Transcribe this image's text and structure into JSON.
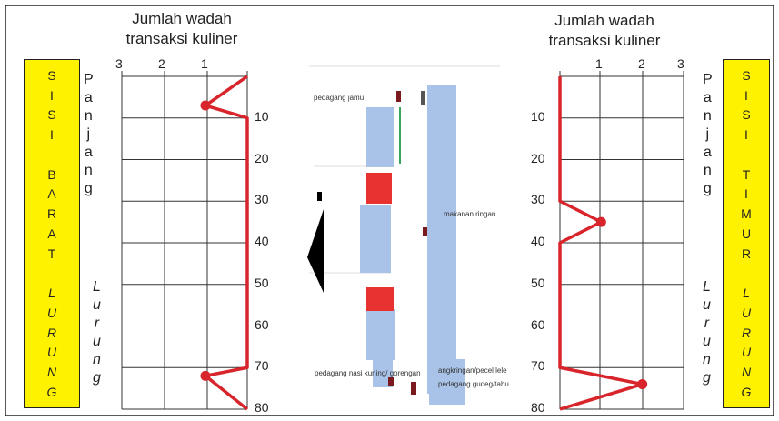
{
  "axis_title": "Jumlah wadah transaksi kuliner",
  "axis_title_lines": [
    "Jumlah wadah",
    "transaksi kuliner"
  ],
  "west": {
    "box_letters": [
      "S",
      "I",
      "S",
      "I",
      "",
      "B",
      "A",
      "R",
      "A",
      "T",
      "",
      "L",
      "U",
      "R",
      "U",
      "N",
      "G"
    ],
    "x_ticks": [
      "3",
      "2",
      "1"
    ]
  },
  "east": {
    "box_letters": [
      "S",
      "I",
      "S",
      "I",
      "",
      "T",
      "I",
      "M",
      "U",
      "R",
      "",
      "L",
      "U",
      "R",
      "U",
      "N",
      "G"
    ],
    "x_ticks": [
      "1",
      "2",
      "3"
    ]
  },
  "panjang_letters": [
    "P",
    "a",
    "n",
    "j",
    "a",
    "n",
    "g"
  ],
  "lurung_letters": [
    "L",
    "u",
    "r",
    "u",
    "n",
    "g"
  ],
  "y_ticks": [
    "10",
    "20",
    "30",
    "40",
    "50",
    "60",
    "70",
    "80"
  ],
  "labels": {
    "jamu": "pedagang jamu",
    "ringan": "makanan ringan",
    "nasi": "pedagang nasi kuning/ gorengan",
    "bakso": "angkringan/pecel lele",
    "gudeg": "pedagang gudeg/tahu"
  },
  "colors": {
    "line": "#d8242b",
    "box": "#fff200",
    "block": "#a9c3e8",
    "stall": "#e8322f"
  },
  "chart_data": [
    {
      "type": "line",
      "title": "Jumlah wadah transaksi kuliner",
      "ylabel": "Panjang Lurung",
      "xlim": [
        0,
        3
      ],
      "ylim": [
        0,
        80
      ],
      "x_axis_direction": "reversed",
      "series": [
        {
          "points": [
            [
              0,
              0
            ],
            [
              1,
              7
            ],
            [
              0,
              10
            ],
            [
              0,
              70
            ],
            [
              1,
              72
            ],
            [
              0,
              80
            ]
          ],
          "markers": [
            [
              1,
              7
            ],
            [
              1,
              72
            ]
          ]
        }
      ]
    },
    {
      "type": "line",
      "title": "Jumlah wadah transaksi kuliner",
      "ylabel": "Panjang Lurung",
      "xlim": [
        0,
        3
      ],
      "ylim": [
        0,
        80
      ],
      "series": [
        {
          "points": [
            [
              0,
              0
            ],
            [
              0,
              30
            ],
            [
              1,
              35
            ],
            [
              0,
              40
            ],
            [
              0,
              70
            ],
            [
              2,
              74
            ],
            [
              0,
              80
            ]
          ],
          "markers": [
            [
              1,
              35
            ],
            [
              2,
              74
            ]
          ]
        }
      ]
    }
  ]
}
